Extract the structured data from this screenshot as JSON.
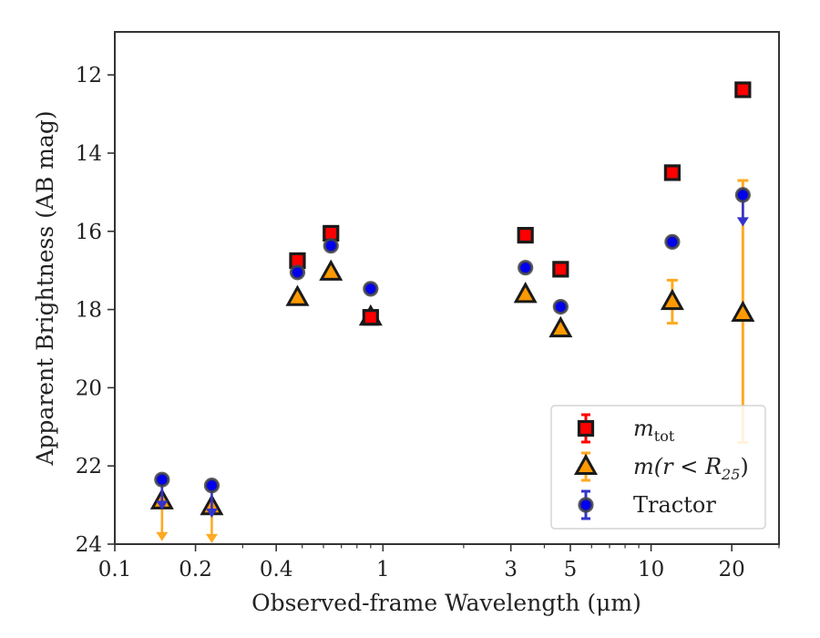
{
  "chart_data": {
    "type": "scatter",
    "xlabel": "Observed-frame Wavelength (μm)",
    "ylabel": "Apparent Brightness (AB mag)",
    "xscale": "log",
    "xlim": [
      0.1,
      30
    ],
    "ylim": [
      24,
      10.9
    ],
    "y_inverted": true,
    "x_ticks": [
      {
        "value": 0.1,
        "label": "0.1"
      },
      {
        "value": 0.2,
        "label": "0.2"
      },
      {
        "value": 0.4,
        "label": "0.4"
      },
      {
        "value": 1,
        "label": "1"
      },
      {
        "value": 3,
        "label": "3"
      },
      {
        "value": 5,
        "label": "5"
      },
      {
        "value": 10,
        "label": "10"
      },
      {
        "value": 20,
        "label": "20"
      }
    ],
    "x_minor_ticks": [
      0.3,
      0.5,
      0.6,
      0.7,
      0.8,
      0.9,
      2,
      4,
      6,
      7,
      8,
      9,
      30
    ],
    "y_ticks": [
      {
        "value": 12,
        "label": "12"
      },
      {
        "value": 14,
        "label": "14"
      },
      {
        "value": 16,
        "label": "16"
      },
      {
        "value": 18,
        "label": "18"
      },
      {
        "value": 20,
        "label": "20"
      },
      {
        "value": 22,
        "label": "22"
      },
      {
        "value": 24,
        "label": "24"
      }
    ],
    "legend_position": "lower-right",
    "series": [
      {
        "key": "mtot",
        "legend": {
          "base": "m",
          "sub": "tot",
          "suffix": ""
        },
        "marker": "square",
        "face": "#ff0000",
        "edge": "#1a1a1a",
        "errcolor": "#ff0000",
        "points": [
          {
            "x": 0.48,
            "y": 16.75
          },
          {
            "x": 0.64,
            "y": 16.05
          },
          {
            "x": 0.9,
            "y": 18.2
          },
          {
            "x": 3.4,
            "y": 16.1
          },
          {
            "x": 4.6,
            "y": 16.97
          },
          {
            "x": 12.0,
            "y": 14.5
          },
          {
            "x": 22.0,
            "y": 12.38
          }
        ]
      },
      {
        "key": "mr25",
        "legend": {
          "base": "m",
          "sub": "25",
          "suffix": "(r < R"
        },
        "marker": "triangle",
        "face": "#ff9900",
        "edge": "#1a1a1a",
        "errcolor": "#ffaa22",
        "points": [
          {
            "x": 0.15,
            "y": 22.9,
            "upper_limit": true,
            "arrow_to": 23.9
          },
          {
            "x": 0.23,
            "y": 23.05,
            "upper_limit": true,
            "arrow_to": 23.95
          },
          {
            "x": 0.48,
            "y": 17.7
          },
          {
            "x": 0.64,
            "y": 17.05
          },
          {
            "x": 0.9,
            "y": 18.2
          },
          {
            "x": 3.4,
            "y": 17.62
          },
          {
            "x": 4.6,
            "y": 18.5
          },
          {
            "x": 12.0,
            "y": 17.8,
            "err_low": 17.25,
            "err_high": 18.35
          },
          {
            "x": 22.0,
            "y": 18.1,
            "err_low": 14.7,
            "err_high": 21.4
          }
        ]
      },
      {
        "key": "tractor",
        "legend": {
          "base": "Tractor",
          "sub": "",
          "suffix": ""
        },
        "marker": "circle",
        "face": "#0000ee",
        "edge": "#444444",
        "errcolor": "#3333cc",
        "points": [
          {
            "x": 0.15,
            "y": 22.35,
            "upper_limit": true,
            "arrow_to": 23.1
          },
          {
            "x": 0.23,
            "y": 22.5,
            "upper_limit": true,
            "arrow_to": 23.3
          },
          {
            "x": 0.48,
            "y": 17.05
          },
          {
            "x": 0.64,
            "y": 16.37
          },
          {
            "x": 0.9,
            "y": 17.47
          },
          {
            "x": 3.4,
            "y": 16.93
          },
          {
            "x": 4.6,
            "y": 17.93
          },
          {
            "x": 12.0,
            "y": 16.27
          },
          {
            "x": 22.0,
            "y": 15.07,
            "upper_limit": true,
            "arrow_to": 15.85
          }
        ]
      }
    ]
  }
}
